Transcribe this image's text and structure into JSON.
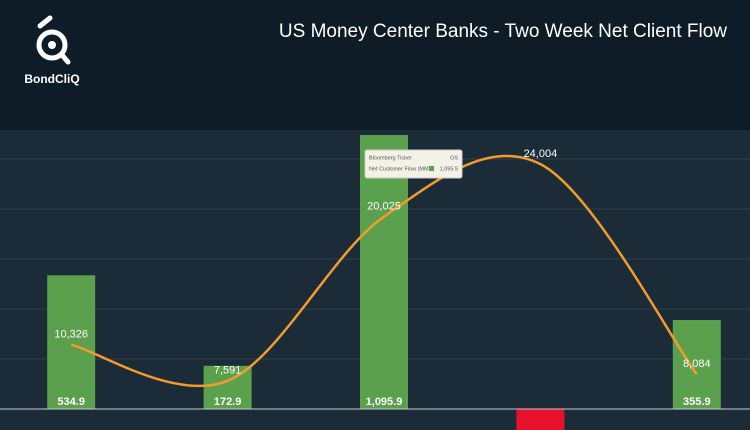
{
  "brand": "BondCliQ",
  "chart_data": {
    "type": "bar",
    "title": "US Money Center Banks - Two Week Net Client Flow",
    "categories": [
      null,
      null,
      null,
      null,
      null
    ],
    "series": [
      {
        "type": "bar",
        "color": "#5ba04d",
        "negative_color": "#e8112d",
        "values": [
          534.9,
          172.9,
          1095.9,
          -100,
          355.9
        ],
        "value_labels": [
          "534.9",
          "172.9",
          "1,095.9",
          null,
          "355.9"
        ]
      },
      {
        "type": "line",
        "axis": "y2",
        "color": "#f39c2b",
        "values": [
          10326,
          7591,
          20025,
          24004,
          8084
        ],
        "value_labels": [
          "10,326",
          "7,591",
          "20,025",
          "24,004",
          "8,084"
        ]
      }
    ],
    "ylim": [
      -84,
      1116
    ],
    "yticks": [
      200,
      400,
      600,
      800,
      1000
    ],
    "grid": true,
    "y2lim": [
      3864,
      26591
    ],
    "tooltip": {
      "ticker_label": "Bloomberg Ticker",
      "ticker": "GS",
      "flow_label": "Net Customer Flow (MM)",
      "flow": "1,095.9"
    }
  }
}
